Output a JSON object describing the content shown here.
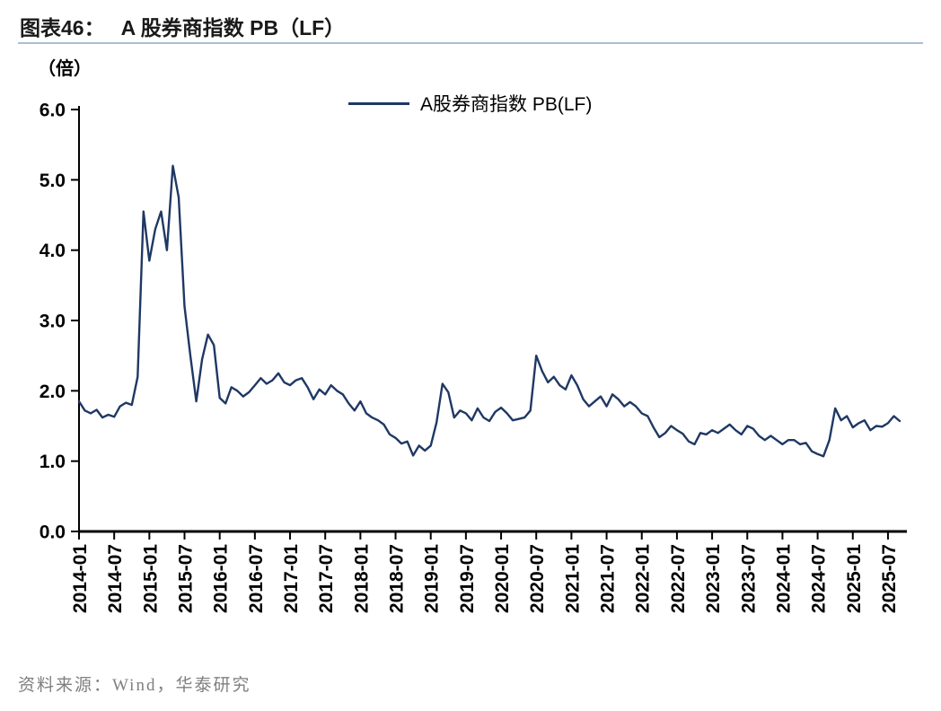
{
  "header": {
    "figure_label": "图表46：",
    "title": "A 股券商指数 PB（LF）"
  },
  "unit_label": "（倍）",
  "source_note": "资料来源：Wind，华泰研究",
  "colors": {
    "line": "#1F3864",
    "divider": "#A9BFD3",
    "axis": "#000000",
    "tick_text": "#000000",
    "title_text": "#1A1A1A",
    "source_text": "#7F7F7F"
  },
  "chart_data": {
    "type": "line",
    "title": "A股券商指数 PB（LF）",
    "series_name": "A股券商指数 PB(LF)",
    "legend_position": "top-center",
    "grid": false,
    "xlabel": "",
    "ylabel": "（倍）",
    "ylim": [
      0,
      6
    ],
    "ytick_step": 1.0,
    "yticks": [
      "0.0",
      "1.0",
      "2.0",
      "3.0",
      "4.0",
      "5.0",
      "6.0"
    ],
    "x_tick_labels": [
      "2014-01",
      "2014-07",
      "2015-01",
      "2015-07",
      "2016-01",
      "2016-07",
      "2017-01",
      "2017-07",
      "2018-01",
      "2018-07",
      "2019-01",
      "2019-07",
      "2020-01",
      "2020-07",
      "2021-01",
      "2021-07",
      "2022-01",
      "2022-07",
      "2023-01",
      "2023-07",
      "2024-01",
      "2024-07",
      "2025-01",
      "2025-07"
    ],
    "x": [
      "2014-01",
      "2014-02",
      "2014-03",
      "2014-04",
      "2014-05",
      "2014-06",
      "2014-07",
      "2014-08",
      "2014-09",
      "2014-10",
      "2014-11",
      "2014-12",
      "2015-01",
      "2015-02",
      "2015-03",
      "2015-04",
      "2015-05",
      "2015-06",
      "2015-07",
      "2015-08",
      "2015-09",
      "2015-10",
      "2015-11",
      "2015-12",
      "2016-01",
      "2016-02",
      "2016-03",
      "2016-04",
      "2016-05",
      "2016-06",
      "2016-07",
      "2016-08",
      "2016-09",
      "2016-10",
      "2016-11",
      "2016-12",
      "2017-01",
      "2017-02",
      "2017-03",
      "2017-04",
      "2017-05",
      "2017-06",
      "2017-07",
      "2017-08",
      "2017-09",
      "2017-10",
      "2017-11",
      "2017-12",
      "2018-01",
      "2018-02",
      "2018-03",
      "2018-04",
      "2018-05",
      "2018-06",
      "2018-07",
      "2018-08",
      "2018-09",
      "2018-10",
      "2018-11",
      "2018-12",
      "2019-01",
      "2019-02",
      "2019-03",
      "2019-04",
      "2019-05",
      "2019-06",
      "2019-07",
      "2019-08",
      "2019-09",
      "2019-10",
      "2019-11",
      "2019-12",
      "2020-01",
      "2020-02",
      "2020-03",
      "2020-04",
      "2020-05",
      "2020-06",
      "2020-07",
      "2020-08",
      "2020-09",
      "2020-10",
      "2020-11",
      "2020-12",
      "2021-01",
      "2021-02",
      "2021-03",
      "2021-04",
      "2021-05",
      "2021-06",
      "2021-07",
      "2021-08",
      "2021-09",
      "2021-10",
      "2021-11",
      "2021-12",
      "2022-01",
      "2022-02",
      "2022-03",
      "2022-04",
      "2022-05",
      "2022-06",
      "2022-07",
      "2022-08",
      "2022-09",
      "2022-10",
      "2022-11",
      "2022-12",
      "2023-01",
      "2023-02",
      "2023-03",
      "2023-04",
      "2023-05",
      "2023-06",
      "2023-07",
      "2023-08",
      "2023-09",
      "2023-10",
      "2023-11",
      "2023-12",
      "2024-01",
      "2024-02",
      "2024-03",
      "2024-04",
      "2024-05",
      "2024-06",
      "2024-07",
      "2024-08",
      "2024-09",
      "2024-10",
      "2024-11",
      "2024-12",
      "2025-01",
      "2025-02",
      "2025-03",
      "2025-04",
      "2025-05",
      "2025-06",
      "2025-07",
      "2025-08",
      "2025-09"
    ],
    "values": [
      1.85,
      1.72,
      1.68,
      1.73,
      1.62,
      1.66,
      1.63,
      1.78,
      1.83,
      1.8,
      2.2,
      4.55,
      3.85,
      4.3,
      4.55,
      4.0,
      5.2,
      4.75,
      3.2,
      2.5,
      1.85,
      2.45,
      2.8,
      2.65,
      1.9,
      1.82,
      2.05,
      2.0,
      1.92,
      1.98,
      2.08,
      2.18,
      2.1,
      2.15,
      2.25,
      2.12,
      2.08,
      2.15,
      2.18,
      2.05,
      1.88,
      2.02,
      1.95,
      2.08,
      2.0,
      1.95,
      1.82,
      1.72,
      1.85,
      1.68,
      1.62,
      1.58,
      1.52,
      1.38,
      1.33,
      1.25,
      1.28,
      1.08,
      1.22,
      1.15,
      1.22,
      1.55,
      2.1,
      1.98,
      1.62,
      1.72,
      1.68,
      1.58,
      1.75,
      1.62,
      1.57,
      1.7,
      1.76,
      1.68,
      1.58,
      1.6,
      1.62,
      1.72,
      2.5,
      2.28,
      2.12,
      2.2,
      2.08,
      2.02,
      2.22,
      2.08,
      1.88,
      1.78,
      1.85,
      1.92,
      1.78,
      1.95,
      1.88,
      1.78,
      1.84,
      1.78,
      1.68,
      1.64,
      1.48,
      1.34,
      1.4,
      1.5,
      1.44,
      1.39,
      1.28,
      1.24,
      1.4,
      1.38,
      1.44,
      1.4,
      1.46,
      1.52,
      1.44,
      1.38,
      1.5,
      1.46,
      1.36,
      1.3,
      1.36,
      1.3,
      1.24,
      1.3,
      1.3,
      1.24,
      1.26,
      1.14,
      1.1,
      1.07,
      1.3,
      1.75,
      1.58,
      1.64,
      1.48,
      1.54,
      1.58,
      1.44,
      1.5,
      1.49,
      1.54,
      1.64,
      1.57
    ]
  }
}
